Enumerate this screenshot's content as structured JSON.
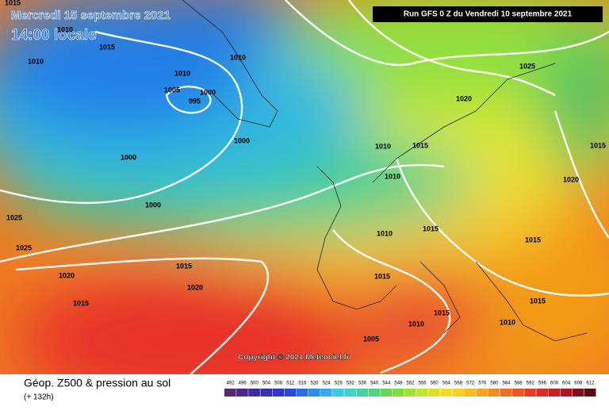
{
  "header": {
    "date": "Mercredi 15 septembre 2021",
    "time": "14:00 locale",
    "run": "Run GFS 0 Z du Vendredi 10 septembre 2021"
  },
  "isobars": [
    1015,
    1010,
    1015,
    1010,
    1010,
    1010,
    1005,
    1000,
    995,
    1000,
    1000,
    1000,
    1025,
    1020,
    1010,
    1015,
    1015,
    1010,
    1020,
    1025,
    1025,
    1010,
    1015,
    1015,
    1015,
    1020,
    1015,
    1020,
    1015,
    1015,
    1015,
    1010,
    1005,
    1010
  ],
  "copyright": "Copyright © 2021 Meteociel.fr",
  "legend": {
    "title": "Géop. Z500 & pression au sol",
    "lead": "(+ 132h)",
    "scale": [
      492,
      496,
      500,
      504,
      508,
      512,
      516,
      520,
      524,
      528,
      532,
      536,
      540,
      544,
      548,
      552,
      556,
      560,
      564,
      568,
      572,
      576,
      580,
      584,
      588,
      592,
      596,
      600,
      604,
      608,
      612
    ]
  }
}
